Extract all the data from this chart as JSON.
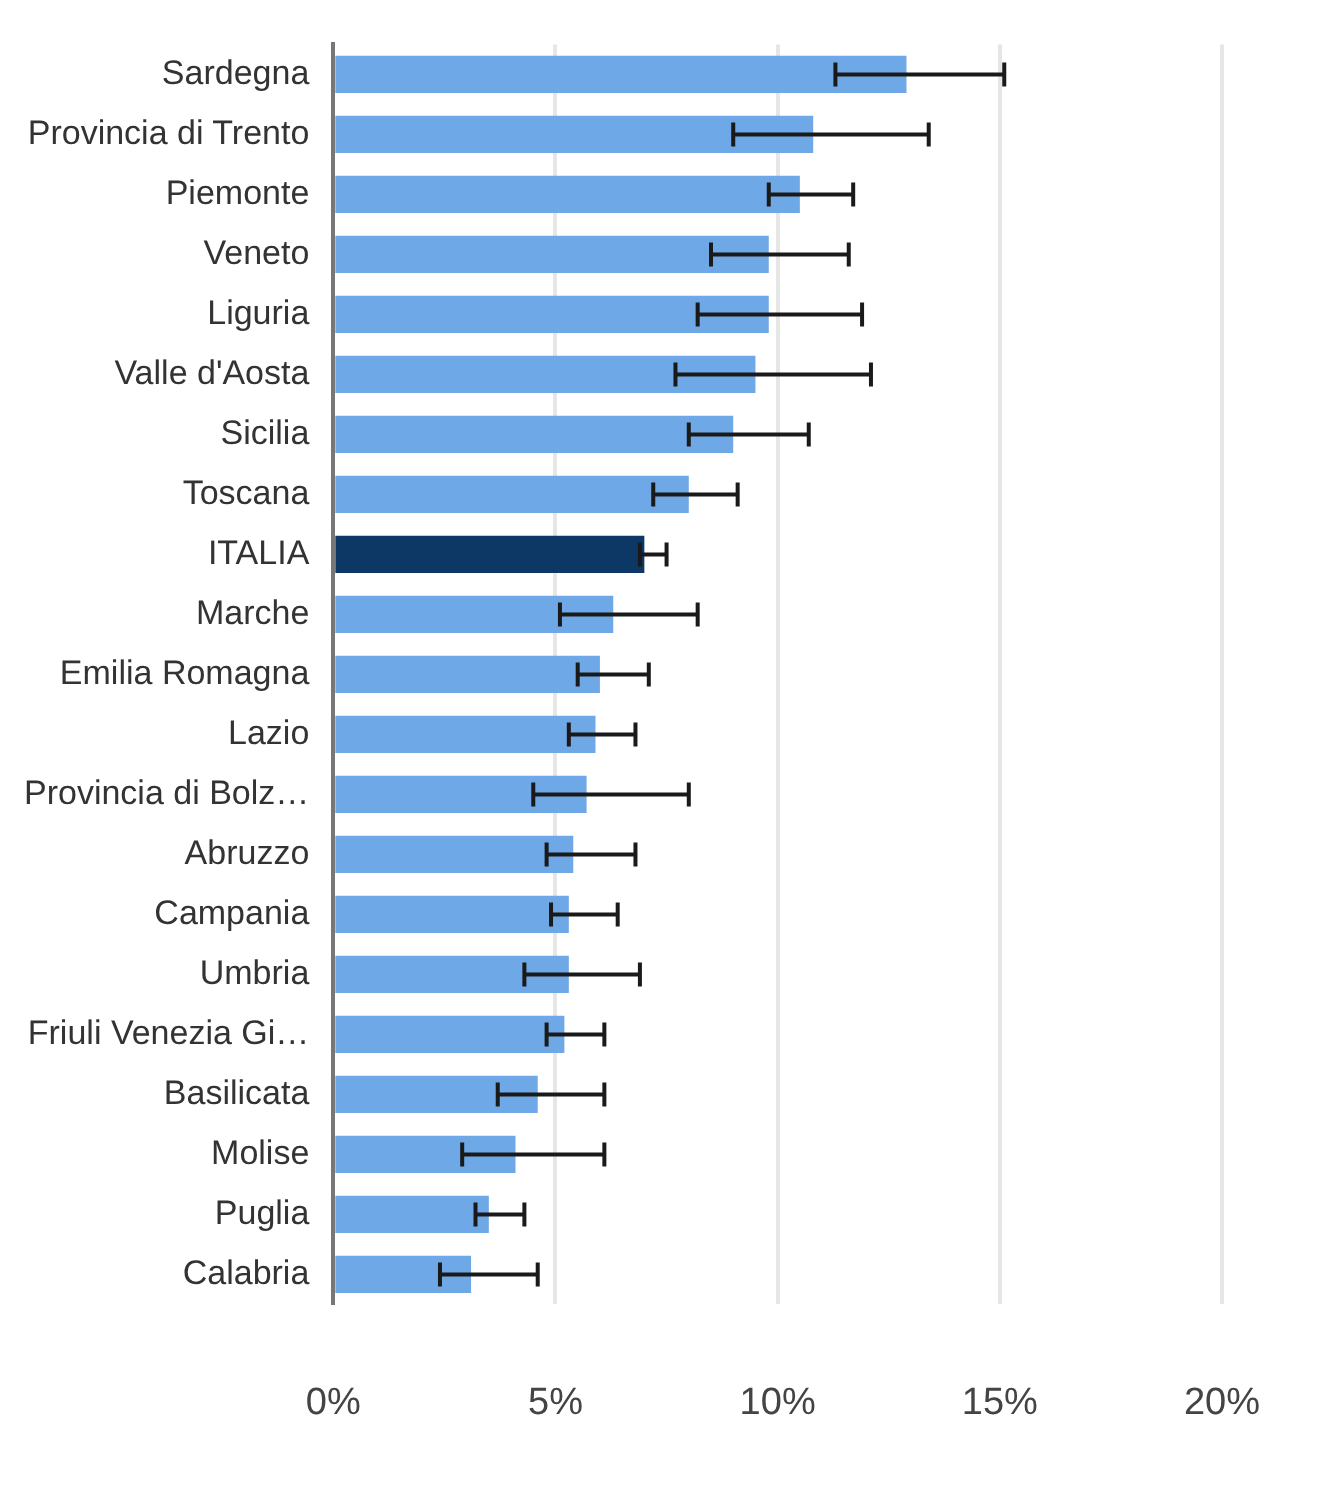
{
  "chart_data": {
    "type": "bar",
    "orientation": "horizontal",
    "categories": [
      "Sardegna",
      "Provincia di Trento",
      "Piemonte",
      "Veneto",
      "Liguria",
      "Valle d'Aosta",
      "Sicilia",
      "Toscana",
      "ITALIA",
      "Marche",
      "Emilia Romagna",
      "Lazio",
      "Provincia di Bolz…",
      "Abruzzo",
      "Campania",
      "Umbria",
      "Friuli Venezia Gi…",
      "Basilicata",
      "Molise",
      "Puglia",
      "Calabria"
    ],
    "values": [
      12.9,
      10.8,
      10.5,
      9.8,
      9.8,
      9.5,
      9.0,
      8.0,
      7.0,
      6.3,
      6.0,
      5.9,
      5.7,
      5.4,
      5.3,
      5.3,
      5.2,
      4.6,
      4.1,
      3.5,
      3.1
    ],
    "colors": [
      "#6fa8e6",
      "#6fa8e6",
      "#6fa8e6",
      "#6fa8e6",
      "#6fa8e6",
      "#6fa8e6",
      "#6fa8e6",
      "#6fa8e6",
      "#0d3866",
      "#6fa8e6",
      "#6fa8e6",
      "#6fa8e6",
      "#6fa8e6",
      "#6fa8e6",
      "#6fa8e6",
      "#6fa8e6",
      "#6fa8e6",
      "#6fa8e6",
      "#6fa8e6",
      "#6fa8e6",
      "#6fa8e6"
    ],
    "errors": [
      [
        11.3,
        15.1
      ],
      [
        9.0,
        13.4
      ],
      [
        9.8,
        11.7
      ],
      [
        8.5,
        11.6
      ],
      [
        8.2,
        11.9
      ],
      [
        7.7,
        12.1
      ],
      [
        8.0,
        10.7
      ],
      [
        7.2,
        9.1
      ],
      [
        6.9,
        7.5
      ],
      [
        5.1,
        8.2
      ],
      [
        5.5,
        7.1
      ],
      [
        5.3,
        6.8
      ],
      [
        4.5,
        8.0
      ],
      [
        4.8,
        6.8
      ],
      [
        4.9,
        6.4
      ],
      [
        4.3,
        6.9
      ],
      [
        4.8,
        6.1
      ],
      [
        3.7,
        6.1
      ],
      [
        2.9,
        6.1
      ],
      [
        3.2,
        4.3
      ],
      [
        2.4,
        4.6
      ]
    ],
    "xlim": [
      0,
      20
    ],
    "xticks": [
      {
        "value": 0,
        "label": "0%"
      },
      {
        "value": 5,
        "label": "5%"
      },
      {
        "value": 10,
        "label": "10%"
      },
      {
        "value": 15,
        "label": "15%"
      },
      {
        "value": 20,
        "label": "20%"
      }
    ],
    "grid": "x"
  }
}
